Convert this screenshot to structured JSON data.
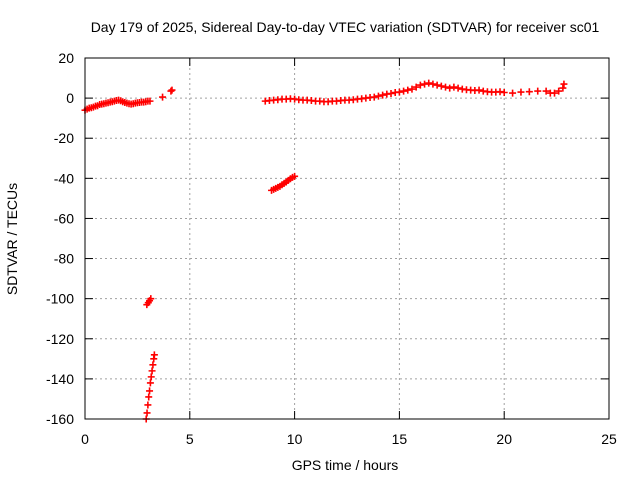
{
  "chart_data": {
    "type": "scatter",
    "title": "Day 179 of 2025, Sidereal Day-to-day VTEC variation (SDTVAR) for receiver sc01",
    "xlabel": "GPS time / hours",
    "ylabel": "SDTVAR / TECUs",
    "xlim": [
      0,
      25
    ],
    "ylim": [
      -160,
      20
    ],
    "xticks": [
      0,
      5,
      10,
      15,
      20,
      25
    ],
    "yticks": [
      -160,
      -140,
      -120,
      -100,
      -80,
      -60,
      -40,
      -20,
      0,
      20
    ],
    "xtick_labels": [
      "0",
      "5",
      "10",
      "15",
      "20",
      "25"
    ],
    "ytick_labels": [
      "-160",
      "-140",
      "-120",
      "-100",
      "-80",
      "-60",
      "-40",
      "-20",
      "0",
      "20"
    ],
    "grid": true,
    "marker": "+",
    "color": "#ff0000",
    "series": [
      {
        "name": "sc01",
        "points": [
          [
            0.0,
            -6.0
          ],
          [
            0.1,
            -5.5
          ],
          [
            0.2,
            -5.0
          ],
          [
            0.3,
            -4.8
          ],
          [
            0.4,
            -4.5
          ],
          [
            0.5,
            -4.0
          ],
          [
            0.6,
            -3.8
          ],
          [
            0.7,
            -3.2
          ],
          [
            0.8,
            -3.0
          ],
          [
            0.9,
            -2.8
          ],
          [
            1.0,
            -2.5
          ],
          [
            1.1,
            -2.3
          ],
          [
            1.2,
            -2.0
          ],
          [
            1.3,
            -1.8
          ],
          [
            1.4,
            -1.5
          ],
          [
            1.5,
            -1.2
          ],
          [
            1.6,
            -1.0
          ],
          [
            1.7,
            -1.3
          ],
          [
            1.8,
            -1.8
          ],
          [
            1.9,
            -2.2
          ],
          [
            2.0,
            -2.5
          ],
          [
            2.1,
            -2.8
          ],
          [
            2.2,
            -3.0
          ],
          [
            2.3,
            -2.8
          ],
          [
            2.4,
            -2.5
          ],
          [
            2.5,
            -2.3
          ],
          [
            2.6,
            -2.2
          ],
          [
            2.7,
            -2.0
          ],
          [
            2.8,
            -2.0
          ],
          [
            2.9,
            -1.8
          ],
          [
            3.0,
            -1.5
          ],
          [
            3.1,
            -1.5
          ],
          [
            3.7,
            0.5
          ],
          [
            4.1,
            3.5
          ],
          [
            4.15,
            4.0
          ],
          [
            2.92,
            -160
          ],
          [
            2.96,
            -157
          ],
          [
            3.0,
            -153
          ],
          [
            3.04,
            -149
          ],
          [
            3.08,
            -146
          ],
          [
            3.12,
            -142
          ],
          [
            3.16,
            -139
          ],
          [
            3.2,
            -136
          ],
          [
            3.24,
            -133
          ],
          [
            3.28,
            -130
          ],
          [
            3.31,
            -128
          ],
          [
            2.95,
            -103
          ],
          [
            3.02,
            -102
          ],
          [
            3.08,
            -101
          ],
          [
            3.14,
            -100
          ],
          [
            8.9,
            -46
          ],
          [
            9.0,
            -45.5
          ],
          [
            9.1,
            -45
          ],
          [
            9.2,
            -44.5
          ],
          [
            9.3,
            -44
          ],
          [
            9.4,
            -43.2
          ],
          [
            9.5,
            -42.5
          ],
          [
            9.6,
            -41.8
          ],
          [
            9.7,
            -41
          ],
          [
            9.8,
            -40.2
          ],
          [
            9.9,
            -39.5
          ],
          [
            10.0,
            -39
          ],
          [
            8.6,
            -1.5
          ],
          [
            8.8,
            -1.2
          ],
          [
            9.0,
            -1.0
          ],
          [
            9.2,
            -0.8
          ],
          [
            9.4,
            -0.5
          ],
          [
            9.6,
            -0.5
          ],
          [
            9.8,
            -0.3
          ],
          [
            10.0,
            -0.5
          ],
          [
            10.2,
            -0.8
          ],
          [
            10.4,
            -1.0
          ],
          [
            10.6,
            -1.0
          ],
          [
            10.8,
            -1.2
          ],
          [
            11.0,
            -1.5
          ],
          [
            11.2,
            -1.5
          ],
          [
            11.4,
            -1.8
          ],
          [
            11.6,
            -1.8
          ],
          [
            11.8,
            -1.5
          ],
          [
            12.0,
            -1.5
          ],
          [
            12.2,
            -1.2
          ],
          [
            12.4,
            -1.0
          ],
          [
            12.6,
            -1.0
          ],
          [
            12.8,
            -0.8
          ],
          [
            13.0,
            -0.5
          ],
          [
            13.2,
            -0.3
          ],
          [
            13.4,
            0.0
          ],
          [
            13.6,
            0.3
          ],
          [
            13.8,
            0.5
          ],
          [
            14.0,
            1.0
          ],
          [
            14.2,
            1.5
          ],
          [
            14.4,
            2.0
          ],
          [
            14.6,
            2.3
          ],
          [
            14.8,
            2.8
          ],
          [
            15.0,
            3.0
          ],
          [
            15.2,
            3.5
          ],
          [
            15.4,
            4.0
          ],
          [
            15.6,
            4.5
          ],
          [
            15.8,
            5.5
          ],
          [
            16.0,
            6.5
          ],
          [
            16.2,
            7.0
          ],
          [
            16.4,
            7.5
          ],
          [
            16.6,
            7.0
          ],
          [
            16.8,
            6.5
          ],
          [
            17.0,
            6.0
          ],
          [
            17.2,
            5.5
          ],
          [
            17.4,
            5.0
          ],
          [
            17.6,
            5.5
          ],
          [
            17.8,
            5.0
          ],
          [
            18.0,
            4.5
          ],
          [
            18.2,
            4.2
          ],
          [
            18.4,
            4.0
          ],
          [
            18.6,
            3.8
          ],
          [
            18.8,
            4.0
          ],
          [
            19.0,
            3.5
          ],
          [
            19.2,
            3.2
          ],
          [
            19.4,
            3.0
          ],
          [
            19.6,
            3.0
          ],
          [
            19.8,
            3.2
          ],
          [
            20.0,
            2.8
          ],
          [
            20.4,
            2.5
          ],
          [
            20.8,
            3.0
          ],
          [
            21.2,
            3.2
          ],
          [
            21.6,
            3.5
          ],
          [
            22.0,
            3.5
          ],
          [
            22.2,
            2.5
          ],
          [
            22.4,
            2.5
          ],
          [
            22.6,
            3.5
          ],
          [
            22.8,
            5.0
          ],
          [
            22.85,
            7.0
          ]
        ]
      }
    ]
  }
}
